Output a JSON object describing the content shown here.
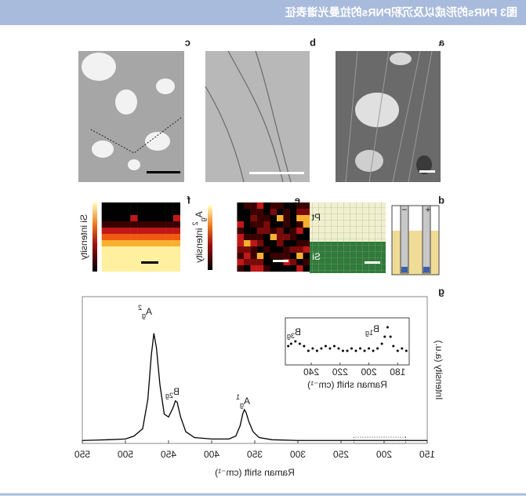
{
  "header": {
    "title": "图3 PNRs的形成以及沉积PNRs的拉曼光谱表征"
  },
  "panel_labels": [
    "a",
    "b",
    "c",
    "d",
    "e",
    "f",
    "g"
  ],
  "panel_d": {
    "top": "Pt",
    "bottom": "Si",
    "plus": "+",
    "minus": "−"
  },
  "colorbars": {
    "f": "Si intensity",
    "e": {
      "base": "A",
      "sub": "g",
      "sup": "2",
      "text": " intensity"
    }
  },
  "chart_data": [
    {
      "type": "line",
      "xlabel": "Raman shift (cm⁻¹)",
      "ylabel": "Intensity (a.u.)",
      "color": "#000000",
      "x": [
        150,
        200,
        250,
        300,
        330,
        345,
        352,
        357,
        360,
        362,
        364,
        367,
        372,
        380,
        400,
        420,
        430,
        436,
        440,
        442,
        445,
        450,
        455,
        460,
        464,
        467,
        470,
        474,
        480,
        490,
        500,
        520,
        550
      ],
      "values": [
        2,
        2,
        2,
        2,
        2.5,
        4,
        8,
        15,
        21,
        23,
        20,
        12,
        5,
        3,
        3,
        4,
        8,
        18,
        28,
        29,
        24,
        18,
        20,
        40,
        65,
        75,
        60,
        30,
        10,
        5,
        3,
        2.5,
        2
      ],
      "xlim": [
        150,
        550
      ],
      "ylim": [
        0,
        100
      ],
      "xticks": [
        150,
        200,
        250,
        300,
        350,
        400,
        450,
        500,
        550
      ],
      "annotations": [
        {
          "base": "A",
          "sub": "g",
          "sup": "2"
        },
        {
          "base": "B",
          "sub": "2g"
        },
        {
          "base": "A",
          "sub": "g",
          "sup": "1"
        }
      ]
    },
    {
      "type": "scatter",
      "xlabel": "Raman shift (cm⁻¹)",
      "color": "#000000",
      "x": [
        174,
        177,
        180,
        183,
        185,
        187,
        189,
        191,
        194,
        197,
        200,
        203,
        206,
        209,
        212,
        215,
        218,
        221,
        224,
        227,
        230,
        233,
        236,
        239,
        242,
        245,
        248,
        251,
        254,
        256
      ],
      "values": [
        3,
        3.5,
        3,
        4,
        6,
        8,
        6,
        4.5,
        3.5,
        3,
        3.5,
        3,
        3.5,
        3,
        3.5,
        3,
        3,
        3.5,
        4,
        3.5,
        4,
        3.5,
        3,
        3.5,
        3,
        4,
        4.5,
        5,
        4.5,
        4
      ],
      "xlim": [
        172,
        258
      ],
      "ylim": [
        0,
        10
      ],
      "xticks": [
        180,
        200,
        220,
        240
      ],
      "annotations": [
        {
          "base": "B",
          "sub": "1g"
        },
        {
          "base": "B",
          "sub": "3g"
        }
      ]
    }
  ]
}
